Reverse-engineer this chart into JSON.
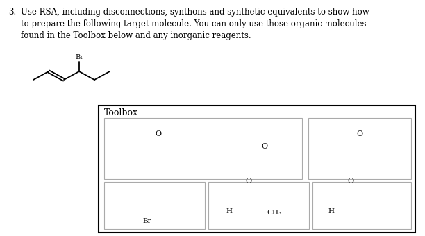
{
  "bg_color": "#ffffff",
  "line_color": "#000000",
  "toolbox_label": "Toolbox",
  "font_family": "DejaVu Serif",
  "header_num": "3.",
  "header_text": "Use RSA, including disconnections, synthons and synthetic equivalents to show how\nto prepare the following target molecule. You can only use those organic molecules\nfound in the Toolbox below and any inorganic reagents.",
  "fig_w": 6.12,
  "fig_h": 3.4,
  "dpi": 100
}
